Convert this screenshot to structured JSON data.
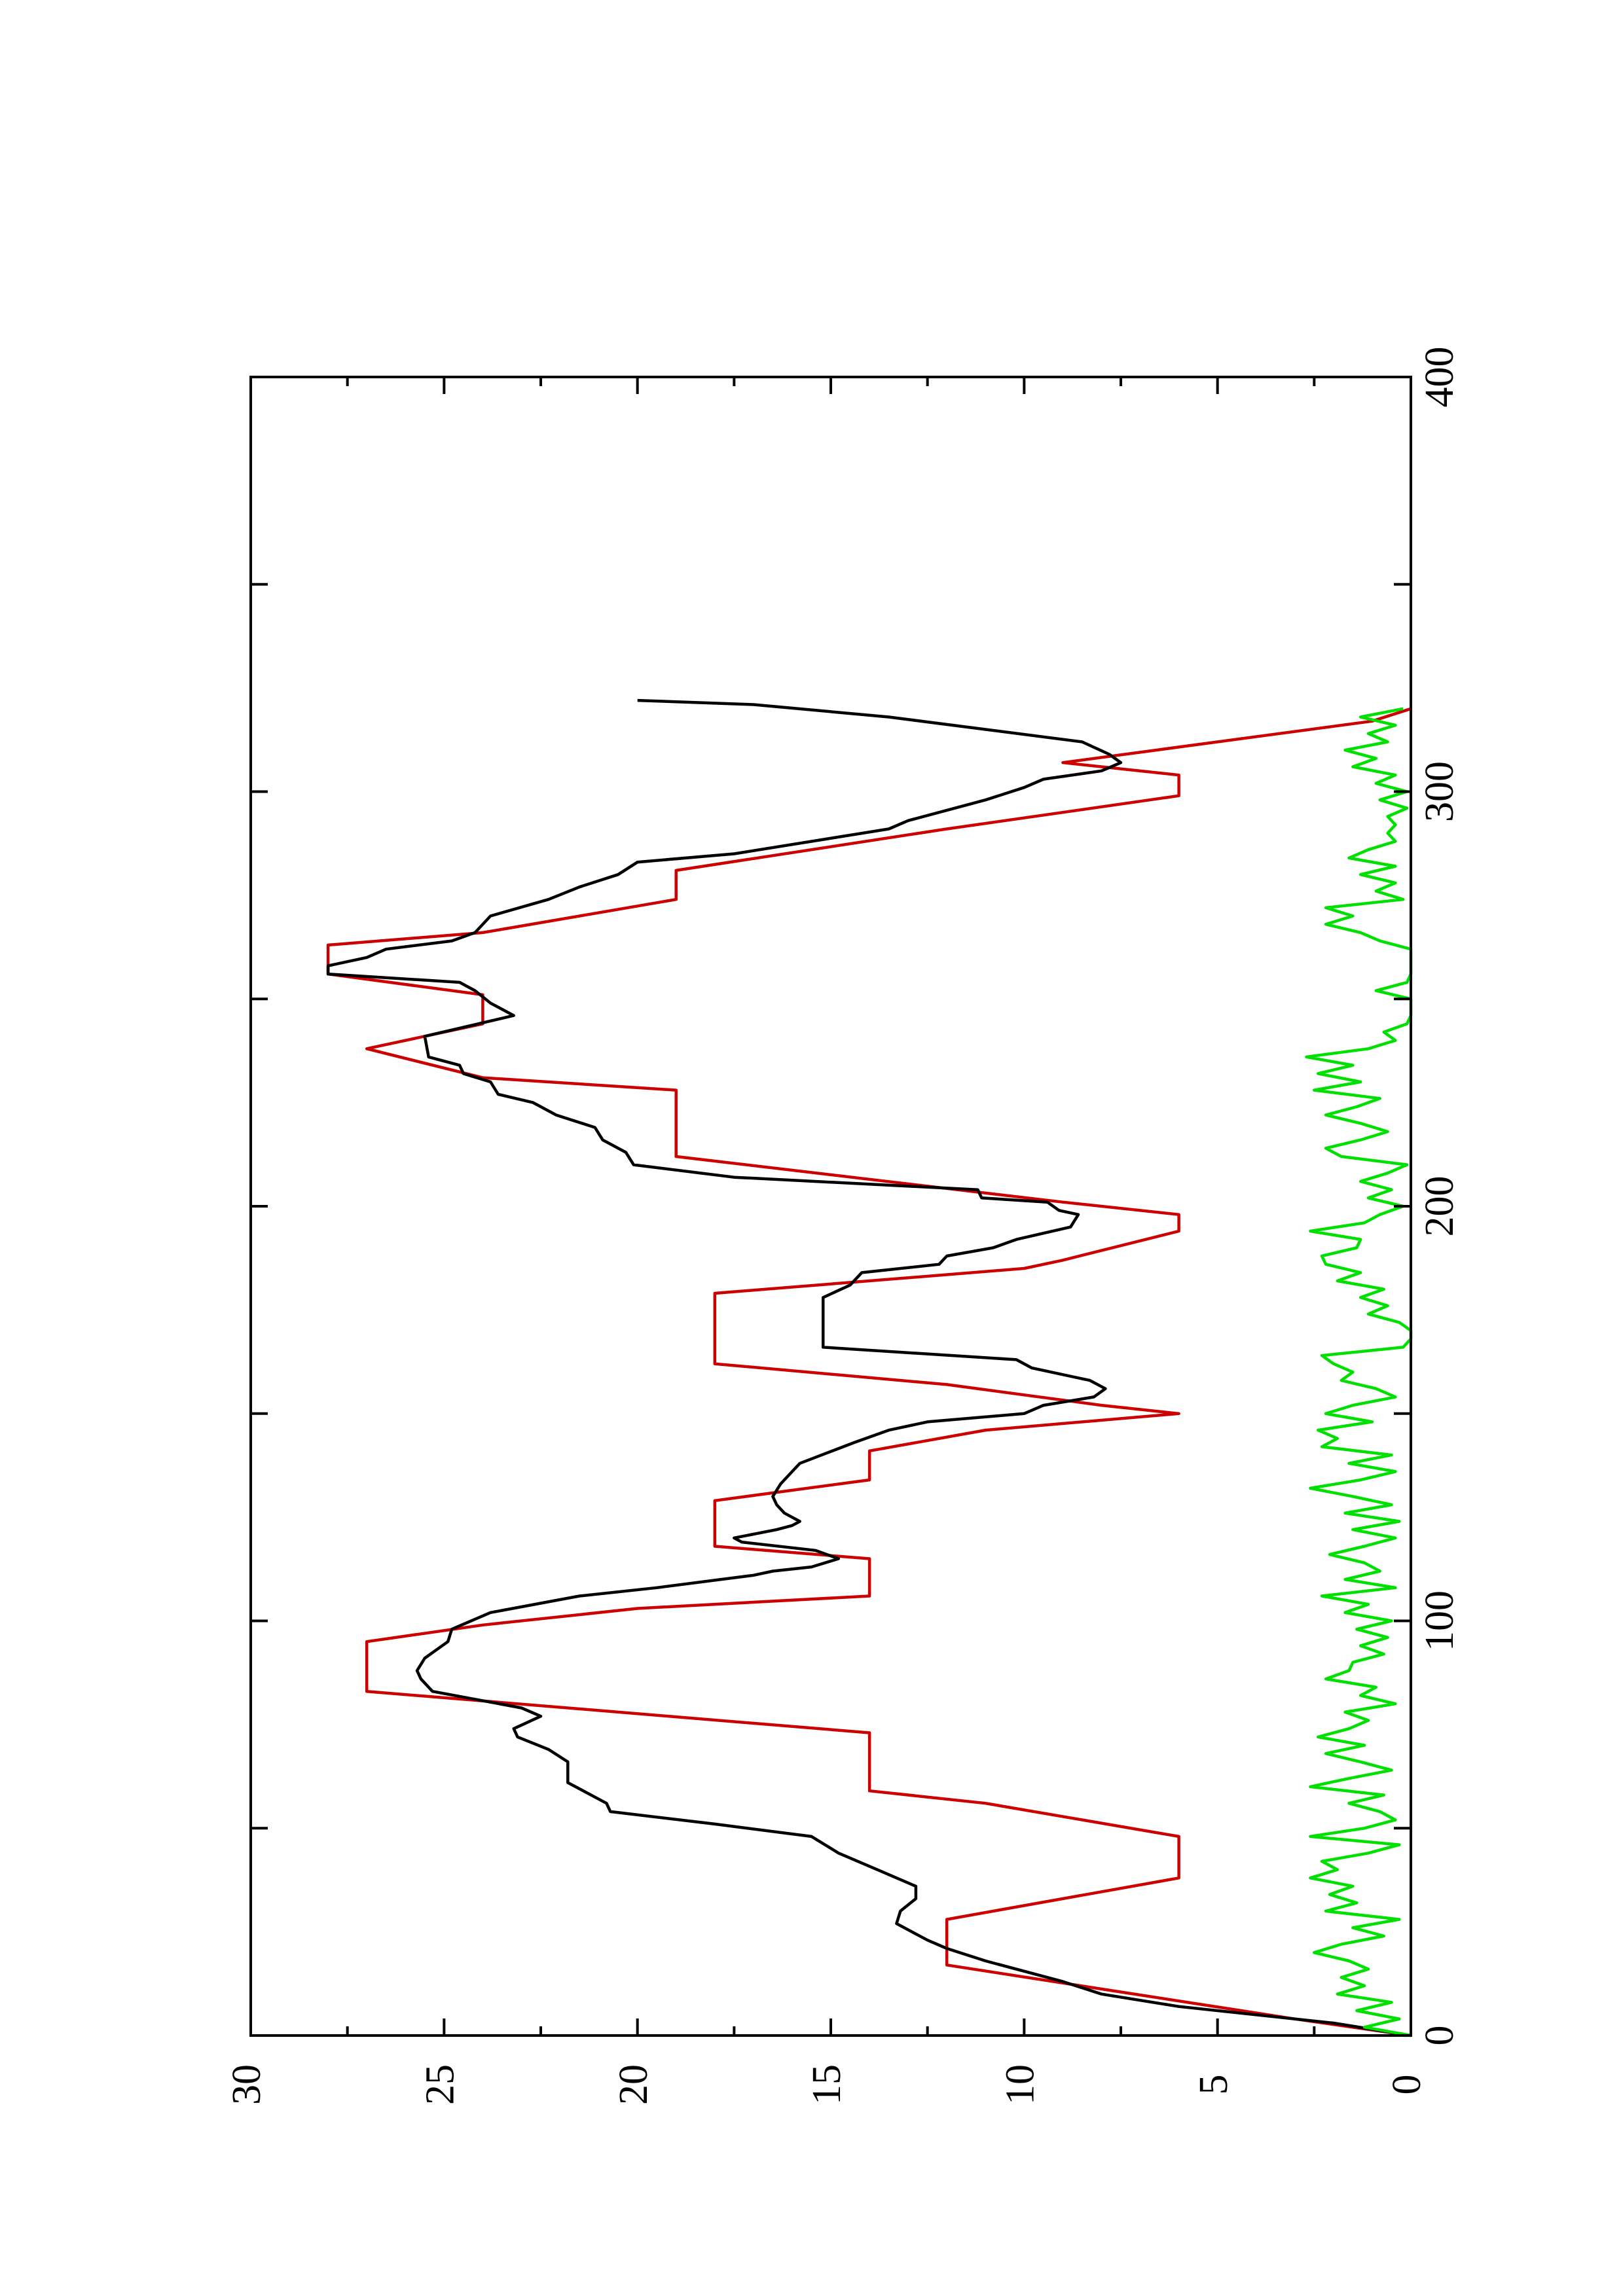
{
  "chart_data": {
    "type": "line",
    "orientation": "rotated-90",
    "title": "",
    "xlabel": "",
    "ylabel": "",
    "xlim": [
      0,
      400
    ],
    "ylim": [
      0,
      30
    ],
    "x_ticks": [
      0,
      100,
      200,
      300,
      400
    ],
    "y_ticks": [
      0,
      5,
      10,
      15,
      20,
      25,
      30
    ],
    "grid": false,
    "legend": "none",
    "series": [
      {
        "color": "#cc0000",
        "points": [
          [
            0,
            0
          ],
          [
            4,
            3
          ],
          [
            17,
            12
          ],
          [
            28,
            12
          ],
          [
            38,
            6
          ],
          [
            48,
            6
          ],
          [
            56,
            11
          ],
          [
            59,
            14
          ],
          [
            73,
            14
          ],
          [
            83,
            27
          ],
          [
            95,
            27
          ],
          [
            99,
            24
          ],
          [
            103,
            20
          ],
          [
            106,
            14
          ],
          [
            115,
            14
          ],
          [
            118,
            18
          ],
          [
            129,
            18
          ],
          [
            134,
            14
          ],
          [
            141,
            14
          ],
          [
            146,
            11
          ],
          [
            150,
            6
          ],
          [
            152,
            8
          ],
          [
            157,
            12
          ],
          [
            162,
            18
          ],
          [
            179,
            18
          ],
          [
            185,
            10
          ],
          [
            187,
            9
          ],
          [
            194,
            6
          ],
          [
            198,
            6
          ],
          [
            201,
            9
          ],
          [
            212,
            19
          ],
          [
            228,
            19
          ],
          [
            231,
            24
          ],
          [
            238,
            27
          ],
          [
            244,
            24
          ],
          [
            251,
            24
          ],
          [
            256,
            28
          ],
          [
            263,
            28
          ],
          [
            266,
            24
          ],
          [
            274,
            19
          ],
          [
            281,
            19
          ],
          [
            291,
            12
          ],
          [
            295,
            9
          ],
          [
            299,
            6
          ],
          [
            304,
            6
          ],
          [
            307,
            9
          ],
          [
            317,
            1
          ],
          [
            320,
            0
          ]
        ]
      },
      {
        "color": "#000000",
        "points": [
          [
            0,
            0
          ],
          [
            3,
            2
          ],
          [
            7,
            6
          ],
          [
            10,
            8
          ],
          [
            13,
            9
          ],
          [
            18,
            11
          ],
          [
            21,
            12
          ],
          [
            23,
            12.5
          ],
          [
            27,
            13.3
          ],
          [
            30,
            13.2
          ],
          [
            33,
            12.8
          ],
          [
            36,
            12.8
          ],
          [
            40,
            13.8
          ],
          [
            44,
            14.8
          ],
          [
            48,
            15.5
          ],
          [
            51,
            18
          ],
          [
            54,
            20.7
          ],
          [
            56,
            20.8
          ],
          [
            61,
            21.8
          ],
          [
            66,
            21.8
          ],
          [
            69,
            22.3
          ],
          [
            72,
            23.1
          ],
          [
            74,
            23.2
          ],
          [
            77,
            22.5
          ],
          [
            79,
            23
          ],
          [
            83,
            25.3
          ],
          [
            86,
            25.6
          ],
          [
            88,
            25.7
          ],
          [
            91,
            25.5
          ],
          [
            93,
            25.2
          ],
          [
            95,
            24.9
          ],
          [
            98,
            24.8
          ],
          [
            102,
            23.8
          ],
          [
            106,
            21.5
          ],
          [
            108,
            19.5
          ],
          [
            111,
            17
          ],
          [
            112,
            16.5
          ],
          [
            113,
            15.5
          ],
          [
            115,
            14.8
          ],
          [
            117,
            15.4
          ],
          [
            119,
            17.3
          ],
          [
            120,
            17.5
          ],
          [
            122,
            16.4
          ],
          [
            123,
            16
          ],
          [
            124,
            15.8
          ],
          [
            126,
            16.2
          ],
          [
            128,
            16.4
          ],
          [
            130,
            16.5
          ],
          [
            133,
            16.3
          ],
          [
            136,
            16
          ],
          [
            138,
            15.8
          ],
          [
            143,
            14.4
          ],
          [
            146,
            13.5
          ],
          [
            148,
            12.5
          ],
          [
            150,
            10
          ],
          [
            152,
            9.5
          ],
          [
            154,
            8.2
          ],
          [
            156,
            7.9
          ],
          [
            158,
            8.3
          ],
          [
            161,
            9.8
          ],
          [
            163,
            10.2
          ],
          [
            166,
            15.2
          ],
          [
            178,
            15.2
          ],
          [
            181,
            14.5
          ],
          [
            184,
            14.2
          ],
          [
            186,
            12.2
          ],
          [
            188,
            12
          ],
          [
            190,
            10.8
          ],
          [
            192,
            10.2
          ],
          [
            195,
            8.8
          ],
          [
            198,
            8.6
          ],
          [
            199,
            9.1
          ],
          [
            201,
            9.4
          ],
          [
            202,
            11.1
          ],
          [
            204,
            11.2
          ],
          [
            207,
            17.5
          ],
          [
            210,
            20.1
          ],
          [
            213,
            20.3
          ],
          [
            216,
            20.9
          ],
          [
            219,
            21.1
          ],
          [
            222,
            22.1
          ],
          [
            225,
            22.7
          ],
          [
            227,
            23.6
          ],
          [
            230,
            23.8
          ],
          [
            232,
            24.5
          ],
          [
            234,
            24.6
          ],
          [
            236,
            25.4
          ],
          [
            241,
            25.5
          ],
          [
            246,
            23.2
          ],
          [
            249,
            23.8
          ],
          [
            252,
            24.2
          ],
          [
            254,
            24.6
          ],
          [
            256,
            28
          ],
          [
            258,
            28
          ],
          [
            260,
            27
          ],
          [
            262,
            26.5
          ],
          [
            264,
            24.8
          ],
          [
            266,
            24.2
          ],
          [
            270,
            23.8
          ],
          [
            274,
            22.3
          ],
          [
            277,
            21.5
          ],
          [
            280,
            20.5
          ],
          [
            283,
            20
          ],
          [
            285,
            17.5
          ],
          [
            291,
            13.5
          ],
          [
            293,
            13
          ],
          [
            298,
            11
          ],
          [
            301,
            10
          ],
          [
            303,
            9.5
          ],
          [
            305,
            8
          ],
          [
            307,
            7.5
          ],
          [
            309,
            7.8
          ],
          [
            312,
            8.5
          ],
          [
            315,
            11
          ],
          [
            318,
            13.5
          ],
          [
            321,
            17
          ],
          [
            322,
            20
          ]
        ]
      },
      {
        "color": "#00e000",
        "points": [
          [
            0,
            0
          ],
          [
            2,
            1.2
          ],
          [
            4,
            0.3
          ],
          [
            6,
            1.4
          ],
          [
            8,
            0.5
          ],
          [
            10,
            1.9
          ],
          [
            12,
            1.2
          ],
          [
            14,
            1.8
          ],
          [
            16,
            1.1
          ],
          [
            18,
            1.6
          ],
          [
            20,
            2.5
          ],
          [
            22,
            1.8
          ],
          [
            24,
            0.7
          ],
          [
            26,
            1.5
          ],
          [
            28,
            0.3
          ],
          [
            30,
            2.2
          ],
          [
            32,
            1.4
          ],
          [
            34,
            2.1
          ],
          [
            36,
            1.5
          ],
          [
            38,
            2.6
          ],
          [
            40,
            1.9
          ],
          [
            42,
            2.3
          ],
          [
            44,
            1.1
          ],
          [
            46,
            0.3
          ],
          [
            48,
            2.6
          ],
          [
            50,
            1.2
          ],
          [
            52,
            0.4
          ],
          [
            54,
            0.8
          ],
          [
            56,
            1.6
          ],
          [
            58,
            0.7
          ],
          [
            60,
            2.6
          ],
          [
            62,
            1.6
          ],
          [
            64,
            0.5
          ],
          [
            66,
            1.3
          ],
          [
            68,
            2.2
          ],
          [
            70,
            1.2
          ],
          [
            72,
            2.4
          ],
          [
            74,
            1.6
          ],
          [
            76,
            1.1
          ],
          [
            78,
            1.7
          ],
          [
            80,
            0.4
          ],
          [
            82,
            1.3
          ],
          [
            84,
            0.9
          ],
          [
            86,
            2.2
          ],
          [
            88,
            1.6
          ],
          [
            90,
            1.5
          ],
          [
            92,
            0.7
          ],
          [
            94,
            1.3
          ],
          [
            96,
            0.6
          ],
          [
            98,
            1.4
          ],
          [
            100,
            0.5
          ],
          [
            102,
            1.7
          ],
          [
            104,
            1.1
          ],
          [
            106,
            2.3
          ],
          [
            108,
            0.4
          ],
          [
            110,
            1.7
          ],
          [
            112,
            0.8
          ],
          [
            114,
            1.2
          ],
          [
            116,
            2.1
          ],
          [
            118,
            1.2
          ],
          [
            120,
            0.4
          ],
          [
            122,
            1.5
          ],
          [
            124,
            0.3
          ],
          [
            126,
            1.7
          ],
          [
            128,
            0.5
          ],
          [
            130,
            1.5
          ],
          [
            132,
            2.6
          ],
          [
            134,
            1.3
          ],
          [
            136,
            0.4
          ],
          [
            138,
            1.6
          ],
          [
            140,
            0.5
          ],
          [
            142,
            2.3
          ],
          [
            144,
            1.9
          ],
          [
            146,
            2.4
          ],
          [
            148,
            1
          ],
          [
            150,
            2.2
          ],
          [
            152,
            1.5
          ],
          [
            154,
            0.4
          ],
          [
            156,
            0.9
          ],
          [
            158,
            1.8
          ],
          [
            160,
            1.5
          ],
          [
            162,
            2
          ],
          [
            164,
            2.3
          ],
          [
            166,
            0.2
          ],
          [
            168,
            0
          ],
          [
            170,
            0
          ],
          [
            172,
            0.3
          ],
          [
            174,
            1.1
          ],
          [
            176,
            0.6
          ],
          [
            178,
            1.3
          ],
          [
            180,
            0.7
          ],
          [
            182,
            1.9
          ],
          [
            184,
            1.3
          ],
          [
            186,
            2.2
          ],
          [
            188,
            2.3
          ],
          [
            190,
            1.4
          ],
          [
            192,
            1.3
          ],
          [
            194,
            2.6
          ],
          [
            196,
            1.2
          ],
          [
            198,
            0.8
          ],
          [
            200,
            0.2
          ],
          [
            202,
            1.1
          ],
          [
            204,
            0.5
          ],
          [
            206,
            1.3
          ],
          [
            208,
            0.6
          ],
          [
            210,
            0.1
          ],
          [
            212,
            1.8
          ],
          [
            214,
            2.2
          ],
          [
            216,
            1.3
          ],
          [
            218,
            0.6
          ],
          [
            220,
            1.3
          ],
          [
            222,
            2.2
          ],
          [
            224,
            1.4
          ],
          [
            226,
            0.8
          ],
          [
            228,
            2.5
          ],
          [
            230,
            1.3
          ],
          [
            232,
            2.4
          ],
          [
            234,
            1.5
          ],
          [
            236,
            2.7
          ],
          [
            238,
            1.1
          ],
          [
            240,
            0.4
          ],
          [
            242,
            0.7
          ],
          [
            244,
            0.1
          ],
          [
            246,
            0
          ],
          [
            248,
            0
          ],
          [
            250,
            0
          ],
          [
            252,
            0.9
          ],
          [
            254,
            0.1
          ],
          [
            256,
            0
          ],
          [
            258,
            0
          ],
          [
            260,
            0
          ],
          [
            262,
            0
          ],
          [
            264,
            0.8
          ],
          [
            266,
            1.3
          ],
          [
            268,
            2.2
          ],
          [
            270,
            1.5
          ],
          [
            272,
            2.2
          ],
          [
            274,
            0.2
          ],
          [
            276,
            0.9
          ],
          [
            278,
            0.4
          ],
          [
            280,
            1.3
          ],
          [
            282,
            0.4
          ],
          [
            284,
            1.6
          ],
          [
            286,
            1.1
          ],
          [
            288,
            0.4
          ],
          [
            290,
            0.6
          ],
          [
            292,
            0.4
          ],
          [
            294,
            0.6
          ],
          [
            296,
            0.1
          ],
          [
            298,
            0.8
          ],
          [
            300,
            0.1
          ],
          [
            302,
            0.9
          ],
          [
            304,
            0.4
          ],
          [
            306,
            1.5
          ],
          [
            308,
            0.9
          ],
          [
            310,
            1.7
          ],
          [
            312,
            0.6
          ],
          [
            314,
            1.1
          ],
          [
            316,
            0.4
          ],
          [
            318,
            1.3
          ],
          [
            320,
            0.2
          ]
        ]
      }
    ]
  }
}
